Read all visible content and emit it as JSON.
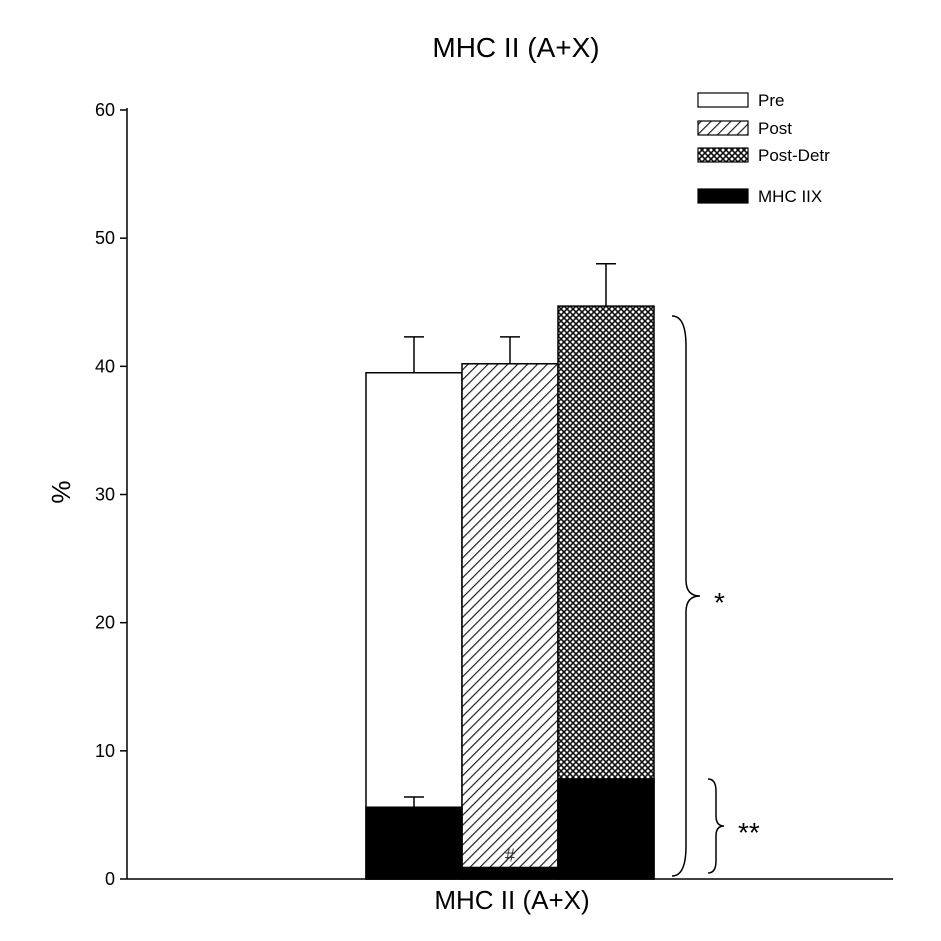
{
  "chart_data": {
    "type": "bar",
    "title": "MHC II (A+X)",
    "xlabel": "MHC II (A+X)",
    "ylabel": "%",
    "ylim": [
      0,
      60
    ],
    "yticks": [
      "0",
      "10",
      "20",
      "30",
      "40",
      "50",
      "60"
    ],
    "grid": false,
    "legend_position": "top-right",
    "categories": [
      "MHC II (A+X)"
    ],
    "series": [
      {
        "name": "Pre",
        "pattern": "open",
        "values": [
          39.5
        ],
        "error": [
          2.8
        ]
      },
      {
        "name": "Post",
        "pattern": "diagonal-hatch",
        "values": [
          40.2
        ],
        "error": [
          2.1
        ]
      },
      {
        "name": "Post-Detr",
        "pattern": "crosshatch",
        "values": [
          44.7
        ],
        "error": [
          3.3
        ]
      }
    ],
    "stacked_overlay": {
      "name": "MHC IIX",
      "color": "#000000",
      "values": [
        5.6,
        0.9,
        7.8
      ],
      "error": [
        0.8,
        null,
        null
      ]
    },
    "legend": [
      "Pre",
      "Post",
      "Post-Detr",
      "MHC IIX"
    ],
    "annotations": {
      "hash": "#",
      "brace_total": "*",
      "brace_iix": "**"
    }
  }
}
